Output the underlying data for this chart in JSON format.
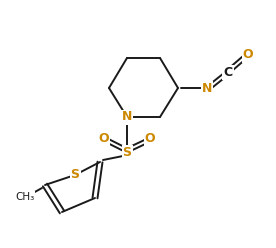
{
  "background": "#ffffff",
  "bond_color": "#1a1a1a",
  "atom_colors": {
    "N": "#cc8000",
    "O": "#cc8000",
    "S": "#cc8000",
    "C": "#1a1a1a"
  },
  "figsize": [
    2.76,
    2.48
  ],
  "dpi": 100
}
